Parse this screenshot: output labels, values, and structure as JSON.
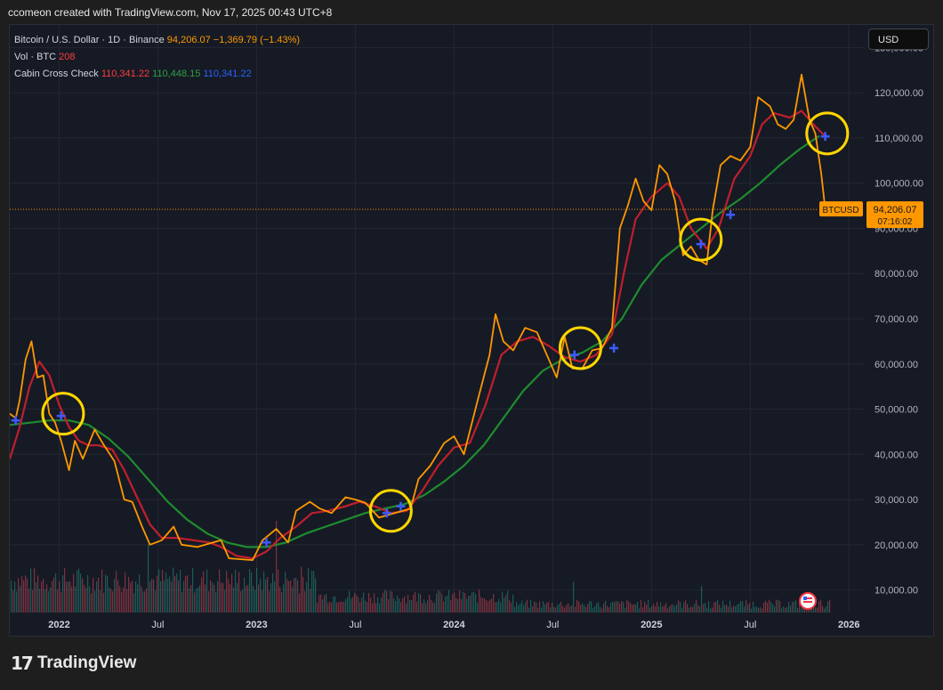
{
  "caption": "ccomeon created with TradingView.com, Nov 17, 2025 00:43 UTC+8",
  "legend": {
    "symbol_label": "Bitcoin / U.S. Dollar · 1D · Binance",
    "price": "94,206.07",
    "change": "−1,369.79 (−1.43%)",
    "vol_label": "Vol · BTC",
    "vol_value": "208",
    "indicator_label": "Cabin Cross Check",
    "ind_red": "110,341.22",
    "ind_green": "110,448.15",
    "ind_blue": "110,341.22"
  },
  "currency_button": "USD",
  "price_tag": {
    "symbol": "BTCUSD",
    "price": "94,206.07",
    "countdown": "07:16:02"
  },
  "footer_brand": "TradingView",
  "chart_data": {
    "type": "line",
    "y_ticks": [
      "130,000.00",
      "120,000.00",
      "110,000.00",
      "100,000.00",
      "90,000.00",
      "80,000.00",
      "70,000.00",
      "60,000.00",
      "50,000.00",
      "40,000.00",
      "30,000.00",
      "20,000.00",
      "10,000.00"
    ],
    "y_tick_values": [
      130000,
      120000,
      110000,
      100000,
      90000,
      80000,
      70000,
      60000,
      50000,
      40000,
      30000,
      20000,
      10000
    ],
    "x_ticks": [
      "2022",
      "Jul",
      "2023",
      "Jul",
      "2024",
      "Jul",
      "2025",
      "Jul",
      "2026"
    ],
    "x_tick_values": [
      2022.0,
      2022.5,
      2023.0,
      2023.5,
      2024.0,
      2024.5,
      2025.0,
      2025.5,
      2026.0
    ],
    "x_range": [
      2021.75,
      2026.08
    ],
    "y_range": [
      5000,
      135000
    ],
    "last_price": 94206.07,
    "series": [
      {
        "name": "Bitcoin / U.S. Dollar",
        "color": "#ff9800",
        "points": [
          [
            2021.75,
            49000
          ],
          [
            2021.78,
            48000
          ],
          [
            2021.8,
            52000
          ],
          [
            2021.83,
            61000
          ],
          [
            2021.86,
            65000
          ],
          [
            2021.89,
            57000
          ],
          [
            2021.92,
            57500
          ],
          [
            2021.95,
            49000
          ],
          [
            2021.98,
            47000
          ],
          [
            2022.01,
            43000
          ],
          [
            2022.05,
            36500
          ],
          [
            2022.08,
            43000
          ],
          [
            2022.12,
            39000
          ],
          [
            2022.18,
            45500
          ],
          [
            2022.22,
            42500
          ],
          [
            2022.28,
            38500
          ],
          [
            2022.33,
            30000
          ],
          [
            2022.37,
            29500
          ],
          [
            2022.42,
            24000
          ],
          [
            2022.46,
            20000
          ],
          [
            2022.52,
            21000
          ],
          [
            2022.58,
            24000
          ],
          [
            2022.62,
            20000
          ],
          [
            2022.7,
            19500
          ],
          [
            2022.78,
            20500
          ],
          [
            2022.82,
            21000
          ],
          [
            2022.86,
            17000
          ],
          [
            2022.92,
            16800
          ],
          [
            2022.98,
            16600
          ],
          [
            2023.03,
            21000
          ],
          [
            2023.1,
            23500
          ],
          [
            2023.16,
            20500
          ],
          [
            2023.2,
            27500
          ],
          [
            2023.27,
            29500
          ],
          [
            2023.32,
            28000
          ],
          [
            2023.38,
            27000
          ],
          [
            2023.45,
            30500
          ],
          [
            2023.5,
            30000
          ],
          [
            2023.55,
            29300
          ],
          [
            2023.62,
            26000
          ],
          [
            2023.7,
            27000
          ],
          [
            2023.78,
            28000
          ],
          [
            2023.82,
            34500
          ],
          [
            2023.88,
            37500
          ],
          [
            2023.95,
            42500
          ],
          [
            2024.0,
            44000
          ],
          [
            2024.05,
            40000
          ],
          [
            2024.12,
            52000
          ],
          [
            2024.18,
            62000
          ],
          [
            2024.21,
            71000
          ],
          [
            2024.25,
            65000
          ],
          [
            2024.3,
            63000
          ],
          [
            2024.36,
            68000
          ],
          [
            2024.42,
            67000
          ],
          [
            2024.48,
            61000
          ],
          [
            2024.52,
            57000
          ],
          [
            2024.56,
            66000
          ],
          [
            2024.6,
            59000
          ],
          [
            2024.65,
            59000
          ],
          [
            2024.7,
            63000
          ],
          [
            2024.75,
            63500
          ],
          [
            2024.8,
            68000
          ],
          [
            2024.84,
            90000
          ],
          [
            2024.88,
            95000
          ],
          [
            2024.92,
            101000
          ],
          [
            2024.96,
            96000
          ],
          [
            2025.0,
            94000
          ],
          [
            2025.04,
            104000
          ],
          [
            2025.08,
            102000
          ],
          [
            2025.12,
            96000
          ],
          [
            2025.16,
            84000
          ],
          [
            2025.2,
            86000
          ],
          [
            2025.24,
            83000
          ],
          [
            2025.28,
            82000
          ],
          [
            2025.31,
            94000
          ],
          [
            2025.35,
            104000
          ],
          [
            2025.4,
            106000
          ],
          [
            2025.45,
            105000
          ],
          [
            2025.5,
            108000
          ],
          [
            2025.54,
            119000
          ],
          [
            2025.6,
            117000
          ],
          [
            2025.64,
            113000
          ],
          [
            2025.68,
            112000
          ],
          [
            2025.72,
            114000
          ],
          [
            2025.76,
            124000
          ],
          [
            2025.8,
            114000
          ],
          [
            2025.83,
            111000
          ],
          [
            2025.86,
            102000
          ],
          [
            2025.88,
            94206
          ]
        ]
      },
      {
        "name": "Cabin Cross Check",
        "color": "#c01f2c",
        "points": [
          [
            2021.75,
            39000
          ],
          [
            2021.8,
            46000
          ],
          [
            2021.85,
            55000
          ],
          [
            2021.9,
            60500
          ],
          [
            2021.95,
            57500
          ],
          [
            2022.0,
            51000
          ],
          [
            2022.05,
            46000
          ],
          [
            2022.1,
            43000
          ],
          [
            2022.15,
            42000
          ],
          [
            2022.2,
            42000
          ],
          [
            2022.27,
            41000
          ],
          [
            2022.33,
            36500
          ],
          [
            2022.4,
            30000
          ],
          [
            2022.46,
            24500
          ],
          [
            2022.52,
            21500
          ],
          [
            2022.6,
            21500
          ],
          [
            2022.68,
            21000
          ],
          [
            2022.76,
            20500
          ],
          [
            2022.82,
            19500
          ],
          [
            2022.9,
            17500
          ],
          [
            2022.98,
            17000
          ],
          [
            2023.05,
            18500
          ],
          [
            2023.12,
            21500
          ],
          [
            2023.2,
            24000
          ],
          [
            2023.28,
            27000
          ],
          [
            2023.36,
            27500
          ],
          [
            2023.45,
            28500
          ],
          [
            2023.52,
            29500
          ],
          [
            2023.6,
            28500
          ],
          [
            2023.68,
            27000
          ],
          [
            2023.76,
            27500
          ],
          [
            2023.84,
            32000
          ],
          [
            2023.92,
            37500
          ],
          [
            2024.0,
            41500
          ],
          [
            2024.08,
            42500
          ],
          [
            2024.16,
            51000
          ],
          [
            2024.24,
            62000
          ],
          [
            2024.32,
            65000
          ],
          [
            2024.4,
            66000
          ],
          [
            2024.48,
            64000
          ],
          [
            2024.56,
            61500
          ],
          [
            2024.64,
            60500
          ],
          [
            2024.72,
            62000
          ],
          [
            2024.8,
            66500
          ],
          [
            2024.86,
            80000
          ],
          [
            2024.92,
            92000
          ],
          [
            2025.0,
            97000
          ],
          [
            2025.08,
            100000
          ],
          [
            2025.14,
            97000
          ],
          [
            2025.2,
            90000
          ],
          [
            2025.28,
            85500
          ],
          [
            2025.34,
            90000
          ],
          [
            2025.42,
            101000
          ],
          [
            2025.5,
            106000
          ],
          [
            2025.56,
            113000
          ],
          [
            2025.62,
            115500
          ],
          [
            2025.7,
            114500
          ],
          [
            2025.76,
            116000
          ],
          [
            2025.82,
            113000
          ],
          [
            2025.88,
            110341
          ]
        ]
      },
      {
        "name": "Cabin Cross Check",
        "color": "#1e8c2e",
        "points": [
          [
            2021.75,
            46500
          ],
          [
            2021.85,
            47000
          ],
          [
            2021.95,
            47500
          ],
          [
            2022.05,
            47500
          ],
          [
            2022.15,
            46500
          ],
          [
            2022.25,
            43500
          ],
          [
            2022.35,
            39500
          ],
          [
            2022.45,
            34500
          ],
          [
            2022.55,
            29500
          ],
          [
            2022.65,
            25500
          ],
          [
            2022.75,
            22500
          ],
          [
            2022.85,
            20500
          ],
          [
            2022.95,
            19500
          ],
          [
            2023.05,
            19500
          ],
          [
            2023.15,
            20500
          ],
          [
            2023.25,
            22500
          ],
          [
            2023.35,
            24000
          ],
          [
            2023.45,
            25500
          ],
          [
            2023.55,
            27000
          ],
          [
            2023.65,
            28000
          ],
          [
            2023.75,
            29000
          ],
          [
            2023.85,
            31000
          ],
          [
            2023.95,
            34000
          ],
          [
            2024.05,
            37500
          ],
          [
            2024.15,
            42000
          ],
          [
            2024.25,
            48000
          ],
          [
            2024.35,
            54000
          ],
          [
            2024.45,
            58500
          ],
          [
            2024.55,
            61000
          ],
          [
            2024.65,
            62500
          ],
          [
            2024.75,
            65000
          ],
          [
            2024.85,
            70000
          ],
          [
            2024.95,
            77500
          ],
          [
            2025.05,
            83000
          ],
          [
            2025.15,
            86500
          ],
          [
            2025.25,
            90000
          ],
          [
            2025.35,
            93500
          ],
          [
            2025.45,
            96500
          ],
          [
            2025.55,
            100000
          ],
          [
            2025.65,
            104000
          ],
          [
            2025.75,
            107500
          ],
          [
            2025.85,
            110448
          ]
        ]
      },
      {
        "name": "Cabin Cross Check",
        "color": "#3d5afe",
        "style": "cross-markers",
        "points": [
          [
            2021.78,
            47500
          ],
          [
            2022.01,
            48500
          ],
          [
            2023.05,
            20500
          ],
          [
            2023.66,
            27000
          ],
          [
            2023.73,
            28500
          ],
          [
            2024.61,
            62000
          ],
          [
            2024.81,
            63500
          ],
          [
            2025.25,
            86500
          ],
          [
            2025.4,
            93000
          ],
          [
            2025.88,
            110341
          ]
        ]
      }
    ],
    "highlight_circles": [
      [
        2022.02,
        49000
      ],
      [
        2023.68,
        27500
      ],
      [
        2024.64,
        63500
      ],
      [
        2025.25,
        87500
      ],
      [
        2025.89,
        111000
      ]
    ],
    "volume": {
      "color_up": "#22ab94",
      "color_down": "#f7525f",
      "spikes": [
        [
          2022.45,
          9000
        ],
        [
          2022.93,
          14000
        ],
        [
          2023.1,
          12000
        ],
        [
          2023.22,
          6000
        ],
        [
          2024.6,
          4000
        ],
        [
          2025.25,
          3500
        ]
      ]
    }
  }
}
